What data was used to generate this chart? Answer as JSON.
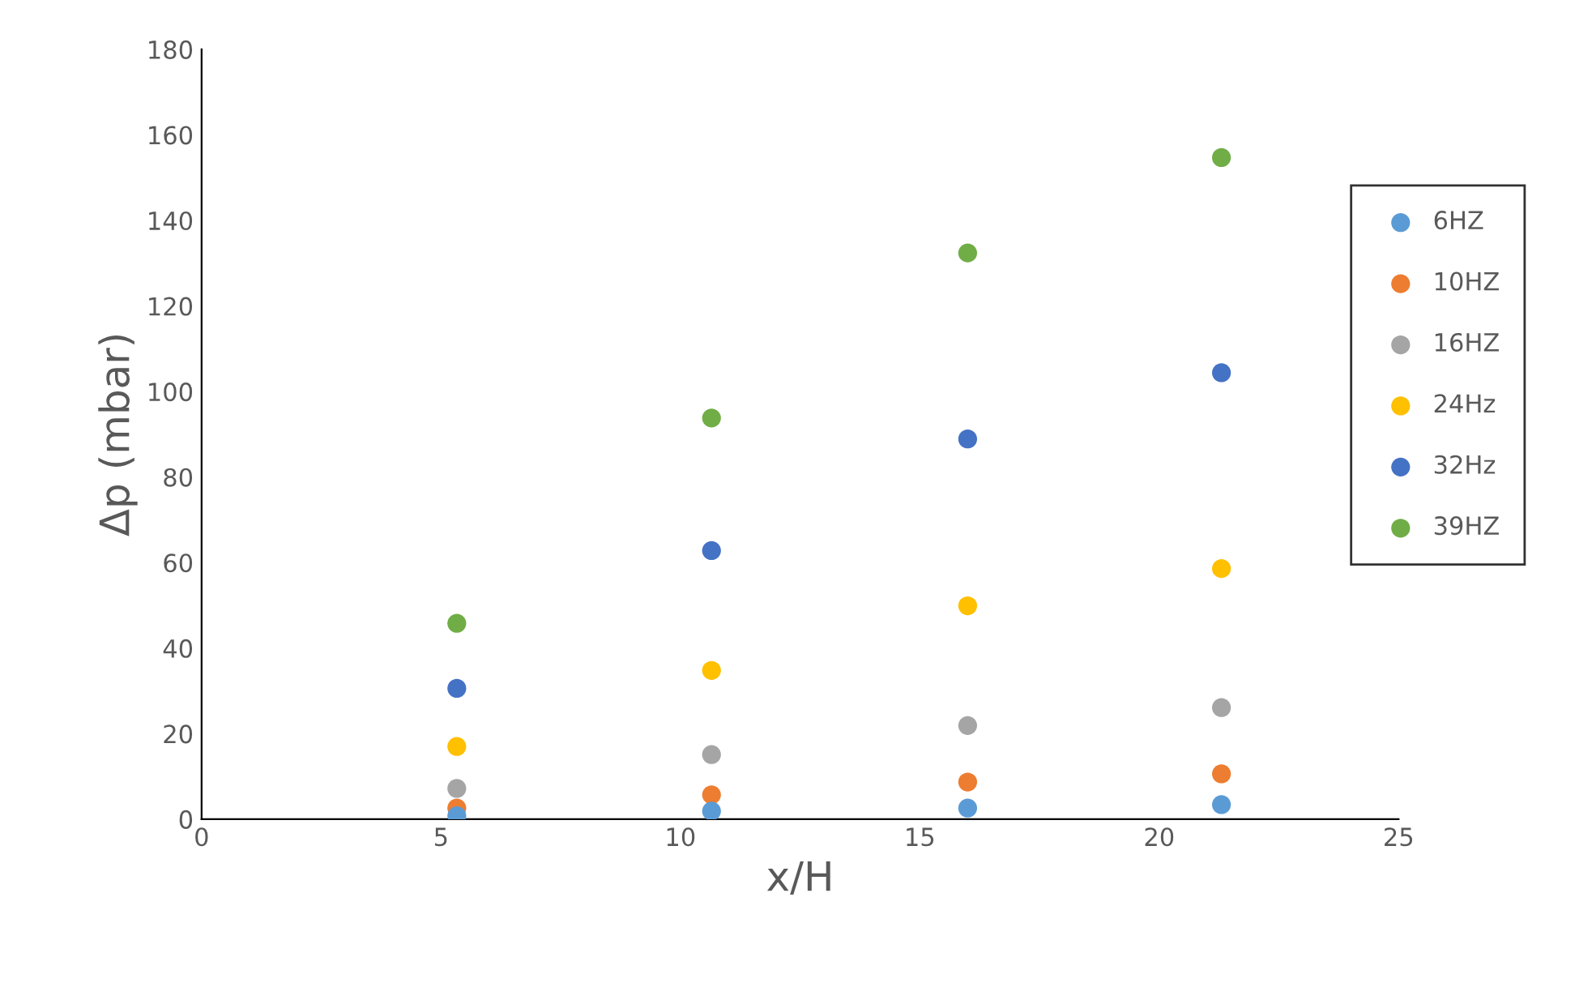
{
  "chart_data": {
    "type": "scatter",
    "xlabel": "x/H",
    "ylabel": "Δp (mbar)",
    "x": [
      5.33,
      10.65,
      16.0,
      21.3
    ],
    "series": [
      {
        "name": "6HZ",
        "color": "#5b9bd5",
        "values": [
          0.8,
          1.9,
          2.6,
          3.4
        ]
      },
      {
        "name": "10HZ",
        "color": "#ed7d31",
        "values": [
          2.6,
          5.7,
          8.7,
          10.6
        ]
      },
      {
        "name": "16HZ",
        "color": "#a5a5a5",
        "values": [
          7.2,
          15.1,
          21.9,
          26.1
        ]
      },
      {
        "name": "24Hz",
        "color": "#ffc000",
        "values": [
          17.0,
          34.8,
          49.9,
          58.6
        ]
      },
      {
        "name": "32Hz",
        "color": "#4472c4",
        "values": [
          30.6,
          62.8,
          88.9,
          104.4
        ]
      },
      {
        "name": "39HZ",
        "color": "#70ad47",
        "values": [
          45.8,
          93.8,
          132.4,
          154.7
        ]
      }
    ],
    "xlim": [
      0,
      25
    ],
    "xticks": [
      0,
      5,
      10,
      15,
      20,
      25
    ],
    "ylim": [
      0,
      180
    ],
    "yticks": [
      0,
      20,
      40,
      60,
      80,
      100,
      120,
      140,
      160,
      180
    ],
    "grid": false,
    "legend": "right",
    "marker": "circle"
  }
}
